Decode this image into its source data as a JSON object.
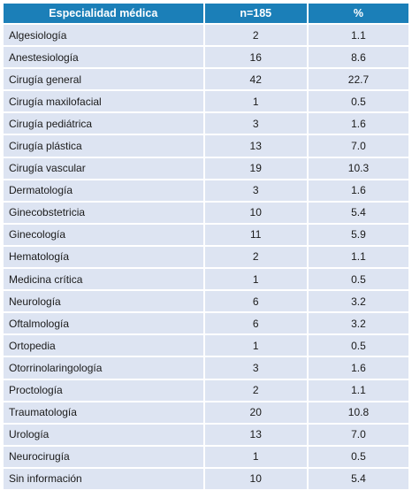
{
  "table": {
    "headers": [
      "Especialidad médica",
      "n=185",
      "%"
    ],
    "rows": [
      [
        "Algesiología",
        "2",
        "1.1"
      ],
      [
        "Anestesiología",
        "16",
        "8.6"
      ],
      [
        "Cirugía general",
        "42",
        "22.7"
      ],
      [
        "Cirugía maxilofacial",
        "1",
        "0.5"
      ],
      [
        "Cirugía pediátrica",
        "3",
        "1.6"
      ],
      [
        "Cirugía plástica",
        "13",
        "7.0"
      ],
      [
        "Cirugía vascular",
        "19",
        "10.3"
      ],
      [
        "Dermatología",
        "3",
        "1.6"
      ],
      [
        "Ginecobstetricia",
        "10",
        "5.4"
      ],
      [
        "Ginecología",
        "11",
        "5.9"
      ],
      [
        "Hematología",
        "2",
        "1.1"
      ],
      [
        "Medicina crítica",
        "1",
        "0.5"
      ],
      [
        "Neurología",
        "6",
        "3.2"
      ],
      [
        "Oftalmología",
        "6",
        "3.2"
      ],
      [
        "Ortopedia",
        "1",
        "0.5"
      ],
      [
        "Otorrinolaringología",
        "3",
        "1.6"
      ],
      [
        "Proctología",
        "2",
        "1.1"
      ],
      [
        "Traumatología",
        "20",
        "10.8"
      ],
      [
        "Urología",
        "13",
        "7.0"
      ],
      [
        "Neurocirugía",
        "1",
        "0.5"
      ],
      [
        "Sin información",
        "10",
        "5.4"
      ]
    ]
  },
  "colors": {
    "header_bg": "#1b7fb8",
    "header_text": "#ffffff",
    "row_bg": "#dde4f2"
  }
}
